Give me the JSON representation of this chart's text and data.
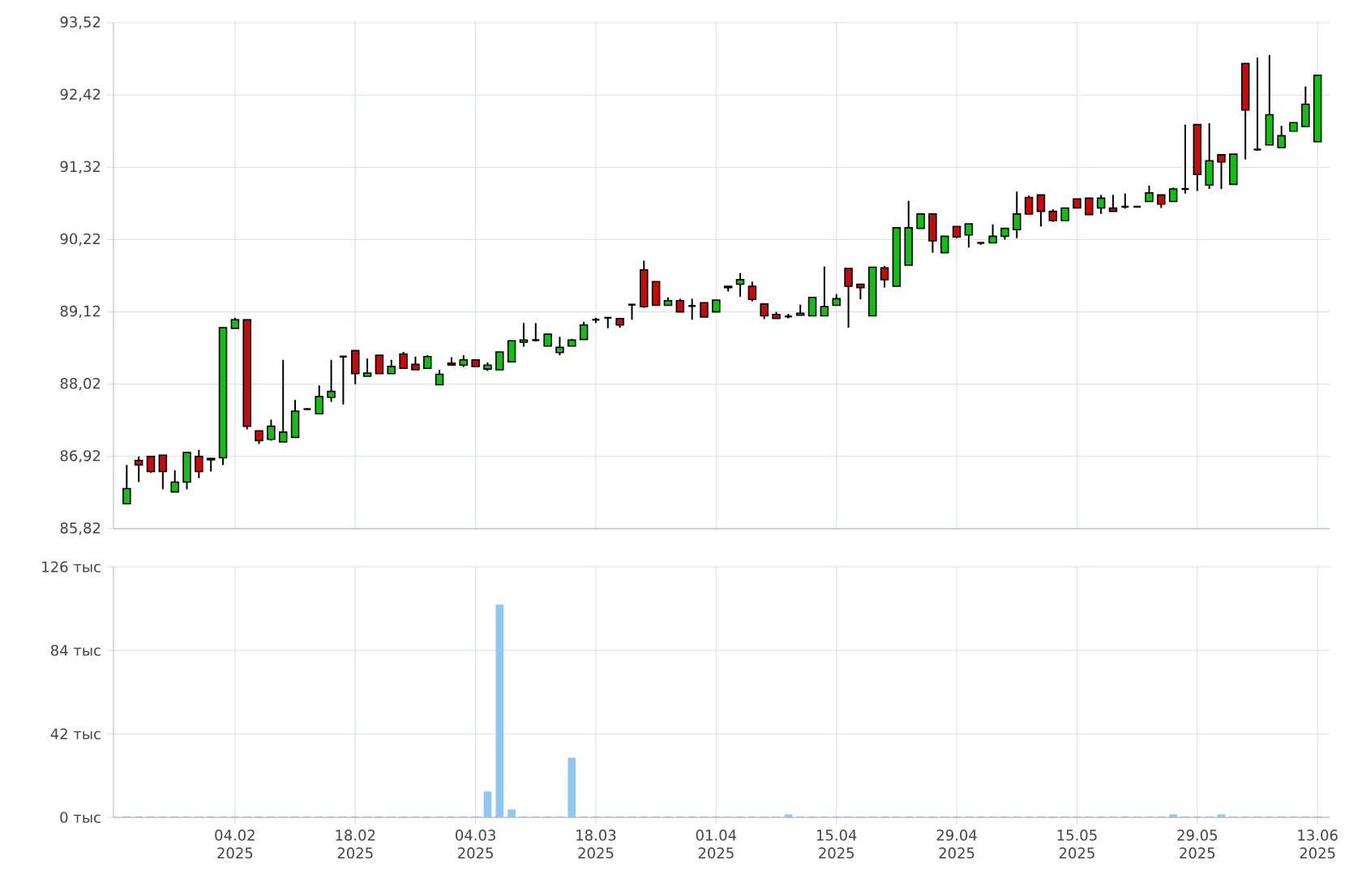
{
  "chart_data": [
    {
      "type": "candlestick",
      "categories": [
        null,
        null,
        null,
        null,
        null,
        null,
        null,
        null,
        null,
        null,
        null,
        null,
        null,
        null,
        null,
        null,
        null,
        null,
        null,
        null,
        null,
        null,
        null,
        null,
        null,
        null,
        null,
        null,
        null,
        null,
        null,
        null,
        null,
        null,
        null,
        null,
        null,
        null,
        null,
        null,
        null,
        null,
        null,
        null,
        null,
        null,
        null,
        null,
        null,
        null,
        null,
        null,
        null,
        null,
        null,
        null,
        null,
        null,
        null,
        null,
        null,
        null,
        null,
        null,
        null,
        null,
        null,
        null,
        null,
        null,
        null,
        null,
        null,
        null,
        null,
        null,
        null,
        null,
        null,
        null,
        null,
        null,
        null,
        null,
        null,
        null,
        null,
        null,
        null,
        null,
        null,
        null,
        null,
        null,
        null,
        null,
        null,
        null,
        null,
        null
      ],
      "ohlc": [
        [
          86.2,
          86.79,
          86.2,
          86.43
        ],
        [
          86.86,
          86.92,
          86.53,
          86.79
        ],
        [
          86.92,
          86.92,
          86.67,
          86.69
        ],
        [
          86.94,
          86.94,
          86.42,
          86.69
        ],
        [
          86.38,
          86.71,
          86.38,
          86.53
        ],
        [
          86.53,
          86.98,
          86.42,
          86.98
        ],
        [
          86.92,
          87.02,
          86.59,
          86.69
        ],
        [
          86.89,
          86.89,
          86.69,
          86.87
        ],
        [
          86.9,
          88.88,
          86.79,
          88.88
        ],
        [
          88.87,
          89.03,
          88.87,
          89.0
        ],
        [
          89.0,
          89.0,
          87.33,
          87.38
        ],
        [
          87.31,
          87.31,
          87.11,
          87.16
        ],
        [
          87.18,
          87.48,
          87.16,
          87.38
        ],
        [
          87.14,
          88.39,
          87.14,
          87.29
        ],
        [
          87.21,
          87.78,
          87.21,
          87.61
        ],
        [
          87.64,
          87.65,
          87.63,
          87.64
        ],
        [
          87.57,
          88.0,
          87.56,
          87.83
        ],
        [
          87.82,
          88.39,
          87.75,
          87.91
        ],
        [
          88.44,
          88.44,
          87.71,
          88.44
        ],
        [
          88.53,
          88.53,
          88.02,
          88.18
        ],
        [
          88.14,
          88.41,
          88.14,
          88.19
        ],
        [
          88.46,
          88.46,
          88.18,
          88.18
        ],
        [
          88.18,
          88.39,
          88.18,
          88.29
        ],
        [
          88.48,
          88.51,
          88.26,
          88.26
        ],
        [
          88.32,
          88.44,
          88.24,
          88.24
        ],
        [
          88.26,
          88.46,
          88.26,
          88.44
        ],
        [
          88.01,
          88.24,
          88.01,
          88.17
        ],
        [
          88.34,
          88.43,
          88.31,
          88.31
        ],
        [
          88.31,
          88.46,
          88.28,
          88.39
        ],
        [
          88.39,
          88.39,
          88.29,
          88.29
        ],
        [
          88.25,
          88.35,
          88.22,
          88.31
        ],
        [
          88.24,
          88.51,
          88.24,
          88.51
        ],
        [
          88.36,
          88.68,
          88.36,
          88.68
        ],
        [
          88.66,
          88.95,
          88.59,
          88.69
        ],
        [
          88.69,
          88.95,
          88.67,
          88.69
        ],
        [
          88.6,
          88.78,
          88.6,
          88.78
        ],
        [
          88.5,
          88.74,
          88.46,
          88.58
        ],
        [
          88.6,
          88.71,
          88.6,
          88.69
        ],
        [
          88.7,
          88.97,
          88.7,
          88.92
        ],
        [
          89.0,
          89.03,
          88.95,
          89.0
        ],
        [
          89.03,
          89.03,
          88.87,
          89.03
        ],
        [
          89.02,
          89.02,
          88.88,
          88.92
        ],
        [
          89.23,
          89.23,
          89.0,
          89.23
        ],
        [
          89.76,
          89.9,
          89.18,
          89.2
        ],
        [
          89.58,
          89.58,
          89.22,
          89.22
        ],
        [
          89.22,
          89.34,
          89.22,
          89.29
        ],
        [
          89.29,
          89.32,
          89.12,
          89.12
        ],
        [
          89.21,
          89.32,
          89.0,
          89.21
        ],
        [
          89.26,
          89.26,
          89.04,
          89.04
        ],
        [
          89.12,
          89.3,
          89.12,
          89.3
        ],
        [
          89.49,
          89.51,
          89.43,
          89.51
        ],
        [
          89.54,
          89.71,
          89.35,
          89.61
        ],
        [
          89.51,
          89.58,
          89.28,
          89.31
        ],
        [
          89.24,
          89.24,
          89.01,
          89.06
        ],
        [
          89.08,
          89.12,
          89.02,
          89.02
        ],
        [
          89.05,
          89.09,
          89.02,
          89.05
        ],
        [
          89.07,
          89.23,
          89.07,
          89.1
        ],
        [
          89.06,
          89.34,
          89.06,
          89.34
        ],
        [
          89.06,
          89.81,
          89.06,
          89.2
        ],
        [
          89.22,
          89.39,
          89.22,
          89.32
        ],
        [
          89.78,
          89.78,
          88.88,
          89.51
        ],
        [
          89.54,
          89.54,
          89.31,
          89.49
        ],
        [
          89.06,
          89.8,
          89.06,
          89.8
        ],
        [
          89.79,
          89.82,
          89.49,
          89.61
        ],
        [
          89.51,
          90.4,
          89.51,
          90.4
        ],
        [
          89.83,
          90.81,
          89.83,
          90.4
        ],
        [
          90.39,
          90.61,
          90.39,
          90.61
        ],
        [
          90.61,
          90.61,
          90.02,
          90.2
        ],
        [
          90.02,
          90.27,
          90.02,
          90.27
        ],
        [
          90.42,
          90.42,
          90.24,
          90.26
        ],
        [
          90.29,
          90.46,
          90.1,
          90.46
        ],
        [
          90.17,
          90.17,
          90.14,
          90.17
        ],
        [
          90.17,
          90.45,
          90.17,
          90.27
        ],
        [
          90.27,
          90.39,
          90.22,
          90.39
        ],
        [
          90.37,
          90.95,
          90.24,
          90.61
        ],
        [
          90.86,
          90.89,
          90.61,
          90.61
        ],
        [
          90.9,
          90.9,
          90.42,
          90.65
        ],
        [
          90.65,
          90.68,
          90.49,
          90.51
        ],
        [
          90.51,
          90.7,
          90.51,
          90.7
        ],
        [
          90.84,
          90.84,
          90.7,
          90.7
        ],
        [
          90.85,
          90.85,
          90.6,
          90.6
        ],
        [
          90.7,
          90.9,
          90.61,
          90.85
        ],
        [
          90.7,
          90.9,
          90.65,
          90.65
        ],
        [
          90.72,
          90.92,
          90.69,
          90.72
        ],
        [
          90.72,
          90.73,
          90.71,
          90.72
        ],
        [
          90.8,
          91.04,
          90.8,
          90.93
        ],
        [
          90.9,
          90.9,
          90.7,
          90.76
        ],
        [
          90.8,
          91.01,
          90.8,
          90.99
        ],
        [
          90.99,
          91.97,
          90.92,
          90.99
        ],
        [
          91.97,
          91.97,
          90.96,
          91.21
        ],
        [
          91.05,
          91.99,
          90.99,
          91.42
        ],
        [
          91.51,
          91.51,
          90.99,
          91.4
        ],
        [
          91.06,
          91.52,
          91.06,
          91.52
        ],
        [
          92.9,
          92.9,
          91.44,
          92.19
        ],
        [
          91.59,
          92.99,
          91.57,
          91.59
        ],
        [
          91.66,
          93.03,
          91.66,
          92.12
        ],
        [
          91.62,
          91.95,
          91.62,
          91.8
        ],
        [
          91.87,
          92.0,
          91.87,
          92.0
        ],
        [
          91.94,
          92.55,
          91.94,
          92.28
        ],
        [
          91.71,
          92.72,
          91.71,
          92.72
        ]
      ],
      "ylim": [
        85.82,
        93.52
      ],
      "yticks": [
        {
          "value": 85.82,
          "label": "85,82"
        },
        {
          "value": 86.92,
          "label": "86,92"
        },
        {
          "value": 88.02,
          "label": "88,02"
        },
        {
          "value": 89.12,
          "label": "89,12"
        },
        {
          "value": 90.22,
          "label": "90,22"
        },
        {
          "value": 91.32,
          "label": "91,32"
        },
        {
          "value": 92.42,
          "label": "92,42"
        },
        {
          "value": 93.52,
          "label": "93,52"
        }
      ],
      "grid": true,
      "tick_labels": "y"
    },
    {
      "type": "bar",
      "categories": [
        null,
        null,
        null,
        null,
        null,
        null,
        null,
        null,
        null,
        "04.02 2025",
        null,
        null,
        null,
        null,
        null,
        null,
        null,
        null,
        null,
        "18.02 2025",
        null,
        null,
        null,
        null,
        null,
        null,
        null,
        null,
        null,
        "04.03 2025",
        null,
        null,
        null,
        null,
        null,
        null,
        null,
        null,
        null,
        "18.03 2025",
        null,
        null,
        null,
        null,
        null,
        null,
        null,
        null,
        null,
        "01.04 2025",
        null,
        null,
        null,
        null,
        null,
        null,
        null,
        null,
        null,
        "15.04 2025",
        null,
        null,
        null,
        null,
        null,
        null,
        null,
        null,
        null,
        "29.04 2025",
        null,
        null,
        null,
        null,
        null,
        null,
        null,
        null,
        null,
        "15.05 2025",
        null,
        null,
        null,
        null,
        null,
        null,
        null,
        null,
        null,
        "29.05 2025",
        null,
        null,
        null,
        null,
        null,
        null,
        null,
        null,
        null,
        "13.06 2025"
      ],
      "values": [
        0.5,
        0.5,
        0.5,
        0.5,
        0.5,
        0.5,
        0.5,
        0.5,
        0.5,
        0.5,
        0.5,
        0.5,
        0.5,
        0.5,
        0.5,
        0.5,
        0.5,
        0.5,
        0.5,
        0.5,
        0.5,
        0.5,
        0.5,
        0.5,
        0.5,
        0.5,
        0.5,
        0.5,
        0.5,
        0.5,
        13,
        107,
        4,
        0.5,
        0.5,
        0.5,
        0.5,
        30,
        0.5,
        0.5,
        0.5,
        0.5,
        0.5,
        0.5,
        0.5,
        0.5,
        0.5,
        0.5,
        0.5,
        0.5,
        0.5,
        0.5,
        0.5,
        0.5,
        0.5,
        1.5,
        0.5,
        0.5,
        0.5,
        0.5,
        0.5,
        0.5,
        0.5,
        0.5,
        0.5,
        0.5,
        0.5,
        0.5,
        0.5,
        0.5,
        0.5,
        0.5,
        0.5,
        0.5,
        0.5,
        0.5,
        0.5,
        0.5,
        0.5,
        0.5,
        0.5,
        0.5,
        0.5,
        0.5,
        0.5,
        0.5,
        0.5,
        1.5,
        0.5,
        0.5,
        0.5,
        1.5,
        0.5,
        0.5,
        0.5,
        0.5,
        0.5,
        0.5,
        0.5,
        0.5
      ],
      "color": "#8ec8f2",
      "ylim": [
        0,
        126
      ],
      "yticks": [
        {
          "value": 0,
          "label": "0 тыс"
        },
        {
          "value": 42,
          "label": "42 тыс"
        },
        {
          "value": 84,
          "label": "84 тыс"
        },
        {
          "value": 126,
          "label": "126 тыс"
        }
      ],
      "grid": true
    }
  ]
}
